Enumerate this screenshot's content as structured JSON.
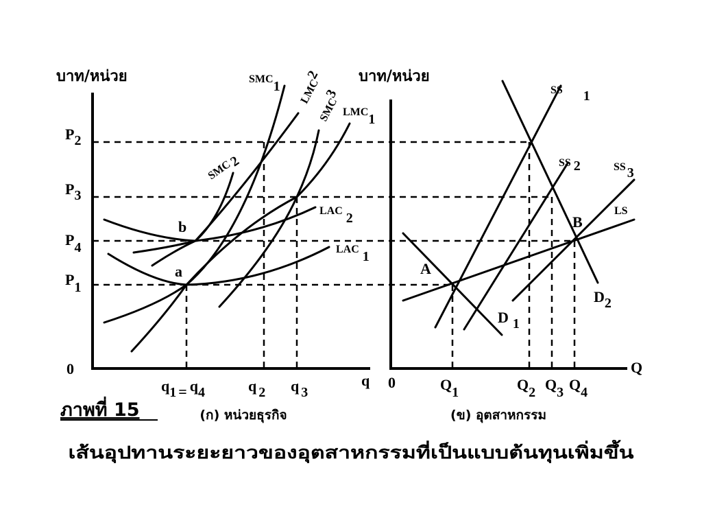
{
  "left_panel": {
    "y_axis_label": "บาท/หน่วย",
    "origin": "0",
    "x_axis_label": "q",
    "caption": "(ก) หน่วยธุรกิจ",
    "price_labels": [
      {
        "main": "P",
        "sub": "2"
      },
      {
        "main": "P",
        "sub": "3"
      },
      {
        "main": "P",
        "sub": "4"
      },
      {
        "main": "P",
        "sub": "1"
      }
    ],
    "quantity_labels": [
      {
        "main": "q",
        "sub": "1",
        "eq": "=",
        "main2": "q",
        "sub2": "4"
      },
      {
        "main": "q",
        "sub": "2"
      },
      {
        "main": "q",
        "sub": "3"
      }
    ],
    "curve_labels": [
      {
        "main": "SMC",
        "sub": "1"
      },
      {
        "main": "LMC",
        "sub": "2"
      },
      {
        "main": "SMC",
        "sub": "3"
      },
      {
        "main": "LMC",
        "sub": "1"
      },
      {
        "main": "SMC",
        "sub": "2"
      },
      {
        "main": "LAC",
        "sub": "2"
      },
      {
        "main": "LAC",
        "sub": "1"
      }
    ],
    "point_labels": [
      "b",
      "a"
    ]
  },
  "right_panel": {
    "y_axis_label": "บาท/หน่วย",
    "origin": "0",
    "x_axis_label": "Q",
    "caption": "(ข) อุตสาหกรรม",
    "quantity_labels": [
      {
        "main": "Q",
        "sub": "1"
      },
      {
        "main": "Q",
        "sub": "2"
      },
      {
        "main": "Q",
        "sub": "3"
      },
      {
        "main": "Q",
        "sub": "4"
      }
    ],
    "curve_labels": [
      {
        "main": "SS",
        "sub": "1"
      },
      {
        "main": "SS",
        "sub": "2"
      },
      {
        "main": "SS",
        "sub": "3"
      },
      {
        "main": "LS"
      },
      {
        "main": "D",
        "sub": "1"
      },
      {
        "main": "D",
        "sub": "2"
      }
    ],
    "point_labels": [
      "B",
      "A"
    ]
  },
  "figure_label": "ภาพที่ 15",
  "title": "เส้นอุปทานระยะยาวของอุตสาหกรรมที่เป็นแบบต้นทุนเพิ่มขึ้น"
}
